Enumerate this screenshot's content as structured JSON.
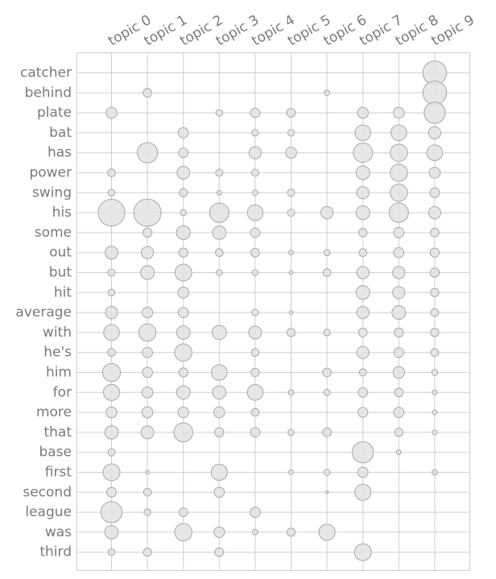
{
  "chart_data": {
    "type": "scatter",
    "subtype": "bubble-matrix",
    "title": "",
    "xlabel": "",
    "ylabel": "",
    "grid": true,
    "legend": "none",
    "colors": {
      "fill": "#e3e3e3",
      "stroke": "#a8a8a8",
      "grid": "#cfcfcf",
      "text": "#7a7a7a"
    },
    "topics": [
      "topic 0",
      "topic 1",
      "topic 2",
      "topic 3",
      "topic 4",
      "topic 5",
      "topic 6",
      "topic 7",
      "topic 8",
      "topic 9"
    ],
    "words": [
      "catcher",
      "behind",
      "plate",
      "bat",
      "has",
      "power",
      "swing",
      "his",
      "some",
      "out",
      "but",
      "hit",
      "average",
      "with",
      "he's",
      "him",
      "for",
      "more",
      "that",
      "base",
      "first",
      "second",
      "league",
      "was",
      "third"
    ],
    "weights": [
      [
        0,
        0,
        0,
        0,
        0,
        0,
        0,
        0,
        0,
        0.75
      ],
      [
        0,
        0.1,
        0,
        0,
        0,
        0,
        0.04,
        0,
        0,
        0.75
      ],
      [
        0.16,
        0,
        0,
        0.06,
        0.12,
        0.1,
        0,
        0.16,
        0.16,
        0.6
      ],
      [
        0,
        0,
        0.14,
        0,
        0.06,
        0.06,
        0,
        0.33,
        0.33,
        0.2
      ],
      [
        0,
        0.55,
        0.12,
        0,
        0.2,
        0.16,
        0,
        0.5,
        0.4,
        0.33
      ],
      [
        0.08,
        0,
        0.22,
        0.07,
        0.07,
        0,
        0,
        0.25,
        0.4,
        0.16
      ],
      [
        0.06,
        0,
        0.09,
        0.03,
        0.04,
        0.07,
        0,
        0.2,
        0.4,
        0.12
      ],
      [
        0.95,
        1.0,
        0.05,
        0.5,
        0.33,
        0.07,
        0.2,
        0.25,
        0.5,
        0.2
      ],
      [
        0,
        0.11,
        0.25,
        0.24,
        0.12,
        0,
        0,
        0.09,
        0.14,
        0.1
      ],
      [
        0.22,
        0.2,
        0.11,
        0.08,
        0.1,
        0.03,
        0.05,
        0.08,
        0.14,
        0.11
      ],
      [
        0.07,
        0.25,
        0.38,
        0.05,
        0.05,
        0.02,
        0.08,
        0.2,
        0.2,
        0.11
      ],
      [
        0.06,
        0,
        0.16,
        0,
        0,
        0,
        0,
        0.25,
        0.2,
        0.09
      ],
      [
        0.2,
        0.15,
        0.14,
        0,
        0.06,
        0.02,
        0,
        0.2,
        0.25,
        0.08
      ],
      [
        0.33,
        0.4,
        0.24,
        0.27,
        0.22,
        0.09,
        0.06,
        0.1,
        0.11,
        0.09
      ],
      [
        0.08,
        0.14,
        0.4,
        0,
        0.08,
        0,
        0,
        0.2,
        0.13,
        0.08
      ],
      [
        0.43,
        0.14,
        0.11,
        0.33,
        0.09,
        0,
        0.1,
        0.07,
        0.18,
        0.05
      ],
      [
        0.35,
        0.16,
        0.24,
        0.24,
        0.33,
        0.04,
        0.05,
        0.12,
        0.1,
        0.03
      ],
      [
        0.16,
        0.16,
        0.15,
        0.16,
        0.08,
        0,
        0,
        0.13,
        0.14,
        0.03
      ],
      [
        0.24,
        0.22,
        0.48,
        0.11,
        0.12,
        0.05,
        0.1,
        0,
        0.09,
        0.03
      ],
      [
        0.07,
        0,
        0,
        0,
        0,
        0,
        0,
        0.6,
        0.03,
        0
      ],
      [
        0.38,
        0.02,
        0,
        0.35,
        0,
        0.03,
        0.05,
        0.14,
        0,
        0.04
      ],
      [
        0.12,
        0.08,
        0,
        0.14,
        0,
        0,
        0.01,
        0.35,
        0,
        0
      ],
      [
        0.6,
        0.06,
        0.1,
        0,
        0.14,
        0,
        0,
        0,
        0,
        0
      ],
      [
        0.24,
        0,
        0.4,
        0.15,
        0.04,
        0.09,
        0.35,
        0,
        0,
        0
      ],
      [
        0.06,
        0.09,
        0,
        0.1,
        0,
        0,
        0,
        0.38,
        0,
        0
      ]
    ]
  }
}
